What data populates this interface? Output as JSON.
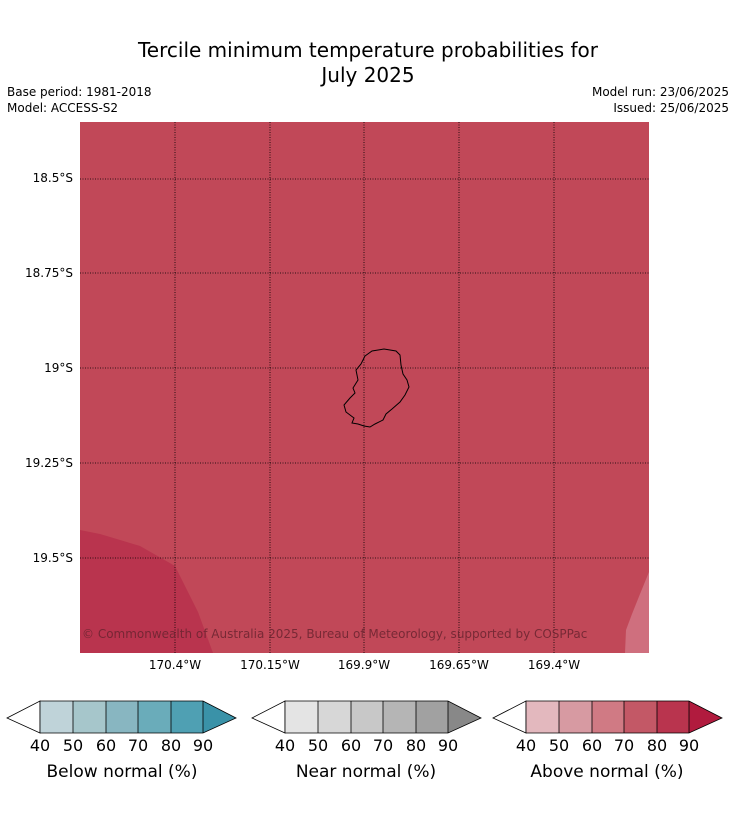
{
  "title_line1": "Tercile minimum temperature probabilities for",
  "title_line2": "July 2025",
  "base_period": "Base period: 1981-2018",
  "model": "Model: ACCESS-S2",
  "model_run": "Model run: 23/06/2025",
  "issued": "Issued: 25/06/2025",
  "copyright": "© Commonwealth of Australia 2025, Bureau of Meteorology, supported by COSPPac",
  "lat_labels": [
    "18.5°S",
    "18.75°S",
    "19°S",
    "19.25°S",
    "19.5°S"
  ],
  "lon_labels": [
    "170.4°W",
    "170.15°W",
    "169.9°W",
    "169.65°W",
    "169.4°W"
  ],
  "colors": {
    "map_fill": "#c14858",
    "map_fill_dark": "#b9344e",
    "map_fill_light": "#cf6f7e"
  },
  "colorbars": [
    {
      "label": "Below normal (%)",
      "ticks": [
        "40",
        "50",
        "60",
        "70",
        "80",
        "90"
      ],
      "colors": [
        "#bfd3d9",
        "#a6c6cb",
        "#88b6c1",
        "#6aacba",
        "#4fa0b3",
        "#3a92a8"
      ]
    },
    {
      "label": "Near normal (%)",
      "ticks": [
        "40",
        "50",
        "60",
        "70",
        "80",
        "90"
      ],
      "colors": [
        "#e4e4e4",
        "#d7d7d7",
        "#c8c8c8",
        "#b5b5b5",
        "#a1a1a1",
        "#888888"
      ]
    },
    {
      "label": "Above normal (%)",
      "ticks": [
        "40",
        "50",
        "60",
        "70",
        "80",
        "90"
      ],
      "colors": [
        "#e3b8be",
        "#d79aa2",
        "#d07a84",
        "#c35866",
        "#b9344e",
        "#b11b3e"
      ]
    }
  ]
}
